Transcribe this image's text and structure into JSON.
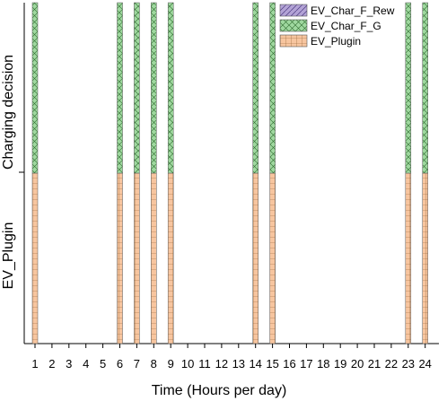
{
  "chart_data": {
    "type": "bar",
    "stacked": true,
    "xlabel": "Time (Hours per day)",
    "ylabel_top": "Charging decision",
    "ylabel_bottom": "EV_Plugin",
    "categories": [
      "1",
      "2",
      "3",
      "4",
      "5",
      "6",
      "7",
      "8",
      "9",
      "10",
      "11",
      "12",
      "13",
      "14",
      "15",
      "16",
      "17",
      "18",
      "19",
      "20",
      "21",
      "22",
      "23",
      "24"
    ],
    "series": [
      {
        "name": "EV_Plugin",
        "color": "#f7c59f",
        "pattern": "grid",
        "values": [
          1,
          0,
          0,
          0,
          0,
          1,
          1,
          1,
          1,
          0,
          0,
          0,
          0,
          1,
          1,
          0,
          0,
          0,
          0,
          0,
          0,
          0,
          1,
          1
        ]
      },
      {
        "name": "EV_Char_F_G",
        "color": "#9fd89f",
        "pattern": "crosshatch",
        "values": [
          1,
          0,
          0,
          0,
          0,
          1,
          1,
          1,
          1,
          0,
          0,
          0,
          0,
          1,
          1,
          0,
          0,
          0,
          0,
          0,
          0,
          0,
          1,
          1
        ]
      },
      {
        "name": "EV_Char_F_Rew",
        "color": "#b3a3d6",
        "pattern": "diagonal",
        "values": [
          0,
          0,
          0,
          0,
          0,
          0,
          0,
          0,
          0,
          0,
          0,
          0,
          0,
          0,
          0,
          0,
          0,
          0,
          0,
          0,
          0,
          0,
          0,
          0
        ]
      }
    ],
    "legend_order": [
      "EV_Char_F_Rew",
      "EV_Char_F_G",
      "EV_Plugin"
    ],
    "legend_position": "top-right",
    "ylim": [
      0,
      2
    ],
    "grid": false
  }
}
